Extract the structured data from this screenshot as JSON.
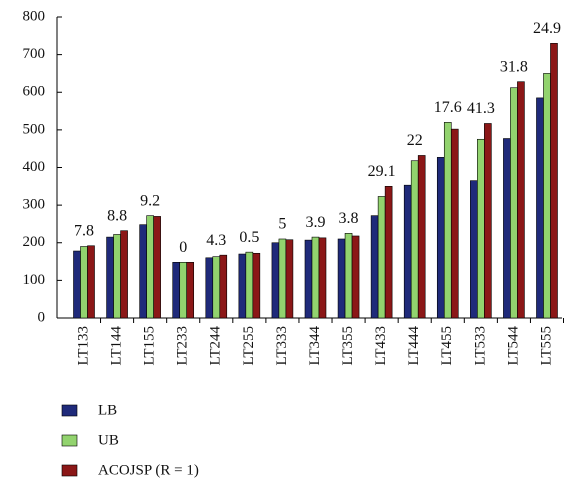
{
  "chart_data": {
    "type": "bar",
    "categories": [
      "LT133",
      "LT144",
      "LT155",
      "LT233",
      "LT244",
      "LT255",
      "LT333",
      "LT344",
      "LT355",
      "LT433",
      "LT444",
      "LT455",
      "LT533",
      "LT544",
      "LT555"
    ],
    "series": [
      {
        "name": "LB",
        "color": "#1f2a7a",
        "values": [
          178,
          215,
          248,
          148,
          160,
          170,
          200,
          207,
          210,
          272,
          353,
          427,
          365,
          477,
          585
        ]
      },
      {
        "name": "UB",
        "color": "#92d36e",
        "values": [
          190,
          222,
          272,
          148,
          163,
          175,
          210,
          215,
          225,
          323,
          418,
          520,
          475,
          612,
          650
        ]
      },
      {
        "name": "ACOJSP (R = 1)",
        "color": "#8b1717",
        "values": [
          192,
          232,
          270,
          148,
          167,
          172,
          208,
          213,
          218,
          350,
          432,
          502,
          517,
          628,
          730
        ]
      }
    ],
    "annotations": [
      7.8,
      8.8,
      9.2,
      0,
      4.3,
      0.5,
      5,
      3.9,
      3.8,
      29.1,
      22,
      17.6,
      41.3,
      31.8,
      24.9
    ],
    "ylim": [
      0,
      800
    ],
    "yticks": [
      0,
      100,
      200,
      300,
      400,
      500,
      600,
      700,
      800
    ],
    "legend": "bottom-left"
  }
}
